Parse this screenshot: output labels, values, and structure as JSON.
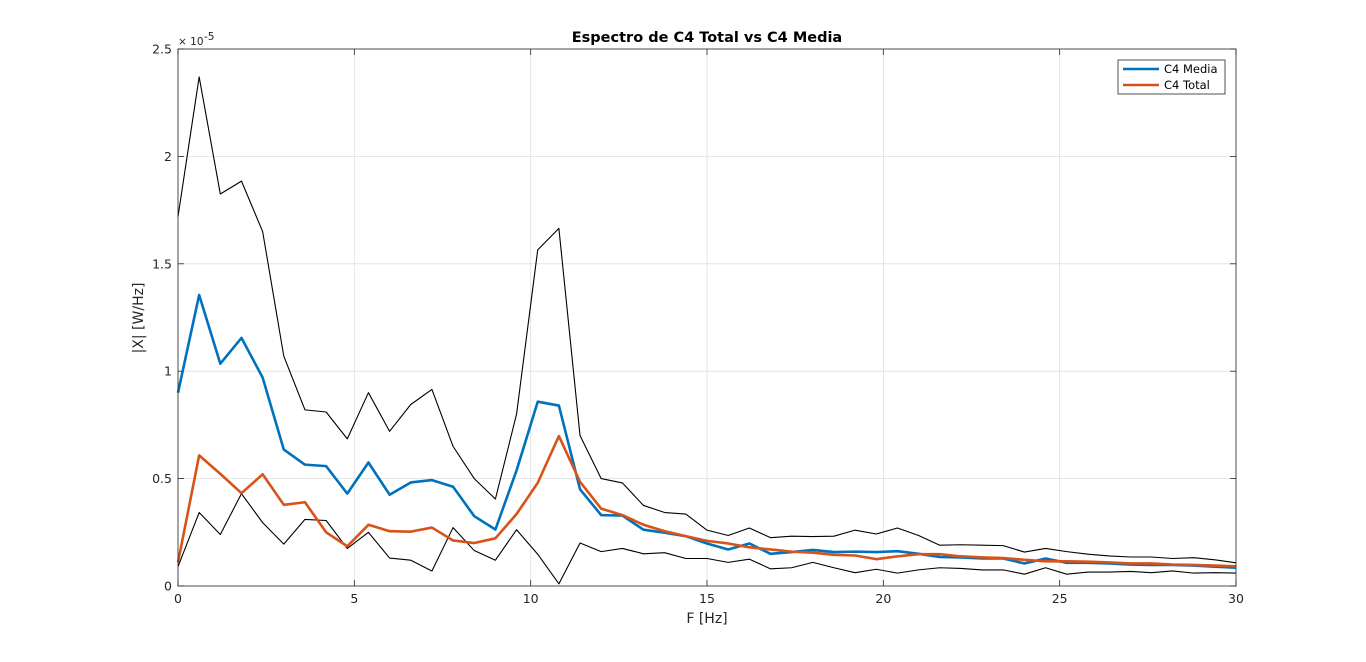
{
  "chart_data": {
    "type": "line",
    "title": "Espectro de C4 Total vs C4 Media",
    "xlabel": "F [Hz]",
    "ylabel": "|X| [W/Hz]",
    "y_exponent_label": "× 10",
    "y_exponent_power": "-5",
    "xlim": [
      0,
      30
    ],
    "ylim": [
      0,
      2.5
    ],
    "x_ticks": [
      0,
      5,
      10,
      15,
      20,
      25,
      30
    ],
    "x_tick_labels": [
      "0",
      "5",
      "10",
      "15",
      "20",
      "25",
      "30"
    ],
    "y_ticks": [
      0,
      0.5,
      1,
      1.5,
      2,
      2.5
    ],
    "y_tick_labels": [
      "0",
      "0.5",
      "1",
      "1.5",
      "2",
      "2.5"
    ],
    "grid": true,
    "legend_position": "top-right",
    "x": [
      0,
      0.6,
      1.2,
      1.8,
      2.4,
      3.0,
      3.6,
      4.2,
      4.8,
      5.4,
      6.0,
      6.6,
      7.2,
      7.8,
      8.4,
      9.0,
      9.6,
      10.2,
      10.8,
      11.4,
      12.0,
      12.6,
      13.2,
      13.8,
      14.4,
      15.0,
      15.6,
      16.2,
      16.8,
      17.4,
      18.0,
      18.6,
      19.2,
      19.8,
      20.4,
      21.0,
      21.6,
      22.2,
      22.8,
      23.4,
      24.0,
      24.6,
      25.2,
      25.8,
      26.4,
      27.0,
      27.6,
      28.2,
      28.8,
      29.4,
      30.0
    ],
    "series": [
      {
        "name": "C4 Media",
        "color": "#0072BD",
        "values": [
          0.9,
          1.355,
          1.035,
          1.155,
          0.97,
          0.635,
          0.565,
          0.558,
          0.43,
          0.575,
          0.425,
          0.482,
          0.493,
          0.462,
          0.325,
          0.263,
          0.538,
          0.858,
          0.84,
          0.45,
          0.33,
          0.328,
          0.262,
          0.248,
          0.232,
          0.198,
          0.17,
          0.198,
          0.15,
          0.158,
          0.168,
          0.158,
          0.16,
          0.158,
          0.162,
          0.15,
          0.135,
          0.133,
          0.128,
          0.128,
          0.105,
          0.128,
          0.108,
          0.108,
          0.105,
          0.1,
          0.098,
          0.098,
          0.095,
          0.09,
          0.085
        ]
      },
      {
        "name": "C4 Total",
        "color": "#D95319",
        "values": [
          0.11,
          0.608,
          0.522,
          0.432,
          0.52,
          0.378,
          0.39,
          0.25,
          0.185,
          0.285,
          0.255,
          0.253,
          0.272,
          0.212,
          0.2,
          0.222,
          0.335,
          0.48,
          0.698,
          0.485,
          0.36,
          0.33,
          0.285,
          0.255,
          0.232,
          0.21,
          0.198,
          0.18,
          0.17,
          0.16,
          0.155,
          0.145,
          0.142,
          0.125,
          0.138,
          0.148,
          0.148,
          0.138,
          0.133,
          0.13,
          0.122,
          0.115,
          0.115,
          0.113,
          0.11,
          0.105,
          0.105,
          0.1,
          0.098,
          0.095,
          0.092
        ]
      },
      {
        "name": "",
        "color": "#000000",
        "values": [
          1.72,
          2.37,
          1.825,
          1.885,
          1.65,
          1.07,
          0.82,
          0.81,
          0.685,
          0.9,
          0.72,
          0.845,
          0.915,
          0.65,
          0.5,
          0.405,
          0.8,
          1.565,
          1.665,
          0.7,
          0.5,
          0.48,
          0.375,
          0.342,
          0.335,
          0.26,
          0.235,
          0.27,
          0.225,
          0.232,
          0.23,
          0.232,
          0.26,
          0.242,
          0.27,
          0.235,
          0.19,
          0.192,
          0.19,
          0.188,
          0.158,
          0.175,
          0.16,
          0.148,
          0.14,
          0.135,
          0.135,
          0.128,
          0.132,
          0.122,
          0.108
        ]
      },
      {
        "name": "",
        "color": "#000000",
        "values": [
          0.09,
          0.342,
          0.24,
          0.43,
          0.295,
          0.195,
          0.31,
          0.305,
          0.175,
          0.25,
          0.13,
          0.12,
          0.07,
          0.272,
          0.165,
          0.12,
          0.262,
          0.148,
          0.01,
          0.2,
          0.16,
          0.175,
          0.15,
          0.155,
          0.128,
          0.128,
          0.11,
          0.125,
          0.08,
          0.085,
          0.11,
          0.085,
          0.062,
          0.078,
          0.06,
          0.075,
          0.085,
          0.082,
          0.075,
          0.075,
          0.055,
          0.085,
          0.055,
          0.065,
          0.065,
          0.068,
          0.062,
          0.07,
          0.06,
          0.062,
          0.06
        ]
      }
    ]
  }
}
